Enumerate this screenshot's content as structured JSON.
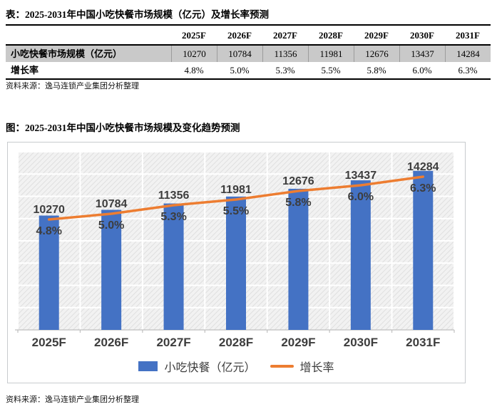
{
  "table_section": {
    "title": "表：2025-2031年中国小吃快餐市场规模（亿元）及增长率预测",
    "source_label": "资料来源：逸马连锁产业集团分析整理",
    "table": {
      "corner": "",
      "columns": [
        "2025F",
        "2026F",
        "2027F",
        "2028F",
        "2029F",
        "2030F",
        "2031F"
      ],
      "rows": [
        {
          "label": "小吃快餐市场规模（亿元）",
          "values": [
            "10270",
            "10784",
            "11356",
            "11981",
            "12676",
            "13437",
            "14284"
          ],
          "shaded": true
        },
        {
          "label": "增长率",
          "values": [
            "4.8%",
            "5.0%",
            "5.3%",
            "5.5%",
            "5.8%",
            "6.0%",
            "6.3%"
          ],
          "shaded": false
        }
      ]
    }
  },
  "chart_section": {
    "title": "图：2025-2031年中国小吃快餐市场规模及变化趋势预测",
    "source_label": "资料来源：逸马连锁产业集团分析整理"
  },
  "chart_data": {
    "type": "bar",
    "categories": [
      "2025F",
      "2026F",
      "2027F",
      "2028F",
      "2029F",
      "2030F",
      "2031F"
    ],
    "series": [
      {
        "name": "小吃快餐（亿元）",
        "mark": "bar",
        "values": [
          10270,
          10784,
          11356,
          11981,
          12676,
          13437,
          14284
        ],
        "value_labels": [
          "10270",
          "10784",
          "11356",
          "11981",
          "12676",
          "13437",
          "14284"
        ],
        "color": "#4472C4",
        "axis": "left",
        "ylim": [
          0,
          16000
        ]
      },
      {
        "name": "增长率",
        "mark": "line",
        "values": [
          4.8,
          5.0,
          5.3,
          5.5,
          5.8,
          6.0,
          6.3
        ],
        "value_labels": [
          "4.8%",
          "5.0%",
          "5.3%",
          "5.5%",
          "5.8%",
          "6.0%",
          "6.3%"
        ],
        "color": "#ED7D31",
        "axis": "right",
        "unit": "%"
      }
    ],
    "title": "图：2025-2031年中国小吃快餐市场规模及变化趋势预测",
    "xlabel": "",
    "ylabel": "",
    "legend_position": "bottom",
    "grid": true,
    "plot_background": "diagonal-hatch"
  },
  "colors": {
    "bar": "#4472C4",
    "line": "#ED7D31",
    "shaded_row": "#c9c9c9",
    "chart_border": "#c8cbce",
    "grid_line": "#ffffff",
    "axis_line": "#bfbfbf",
    "label_text": "#3d3d3d"
  }
}
